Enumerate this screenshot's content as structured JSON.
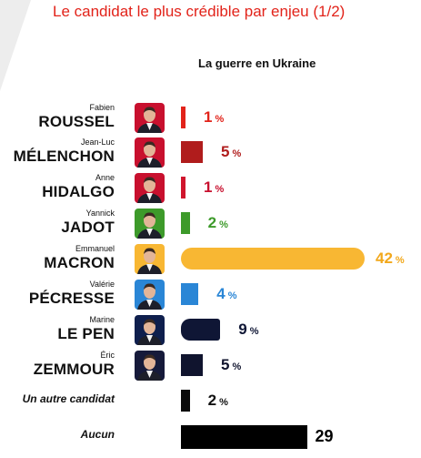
{
  "header": {
    "title": "Le candidat le plus crédible par enjeu (1/2)",
    "subtitle": "La guerre en Ukraine"
  },
  "chart_data": {
    "type": "bar",
    "orientation": "horizontal",
    "title": "Le candidat le plus crédible par enjeu (1/2)",
    "subtitle": "La guerre en Ukraine",
    "categories": [
      "Fabien ROUSSEL",
      "Jean-Luc MÉLENCHON",
      "Anne HIDALGO",
      "Yannick JADOT",
      "Emmanuel MACRON",
      "Valérie PÉCRESSE",
      "Marine LE PEN",
      "Éric ZEMMOUR",
      "Un autre candidat",
      "Aucun"
    ],
    "values": [
      1,
      5,
      1,
      2,
      42,
      4,
      9,
      5,
      2,
      29
    ],
    "value_labels": [
      "1",
      "5",
      "1",
      "2",
      "42",
      "4",
      "9",
      "5",
      "2",
      "29"
    ],
    "unit": "%",
    "xlim": [
      0,
      42
    ],
    "grid": false,
    "legend": "none",
    "rows": [
      {
        "first": "Fabien",
        "last": "ROUSSEL",
        "value": 1,
        "label": "1",
        "unit": "%",
        "color": "#e2231a",
        "label_color": "#e2231a",
        "photo_bg": "#c8102e",
        "photo": "portrait-roussel"
      },
      {
        "first": "Jean-Luc",
        "last": "MÉLENCHON",
        "value": 5,
        "label": "5",
        "unit": "%",
        "color": "#b01c1c",
        "label_color": "#b01c1c",
        "photo_bg": "#c8102e",
        "photo": "portrait-melenchon"
      },
      {
        "first": "Anne",
        "last": "HIDALGO",
        "value": 1,
        "label": "1",
        "unit": "%",
        "color": "#d0152d",
        "label_color": "#c8102e",
        "photo_bg": "#c8102e",
        "photo": "portrait-hidalgo"
      },
      {
        "first": "Yannick",
        "last": "JADOT",
        "value": 2,
        "label": "2",
        "unit": "%",
        "color": "#3d9a2a",
        "label_color": "#3d9a2a",
        "photo_bg": "#3d9a2a",
        "photo": "portrait-jadot"
      },
      {
        "first": "Emmanuel",
        "last": "MACRON",
        "value": 42,
        "label": "42",
        "unit": "%",
        "color": "#f8b733",
        "label_color": "#f2a81c",
        "photo_bg": "#f8b733",
        "photo": "portrait-macron"
      },
      {
        "first": "Valérie",
        "last": "PÉCRESSE",
        "value": 4,
        "label": "4",
        "unit": "%",
        "color": "#2a86d6",
        "label_color": "#2a86d6",
        "photo_bg": "#2a86d6",
        "photo": "portrait-pecresse"
      },
      {
        "first": "Marine",
        "last": "LE PEN",
        "value": 9,
        "label": "9",
        "unit": "%",
        "color": "#0f1635",
        "label_color": "#0f1635",
        "photo_bg": "#0f1f4d",
        "photo": "portrait-lepen"
      },
      {
        "first": "Éric",
        "last": "ZEMMOUR",
        "value": 5,
        "label": "5",
        "unit": "%",
        "color": "#10142e",
        "label_color": "#10142e",
        "photo_bg": "#161a3a",
        "photo": "portrait-zemmour"
      },
      {
        "first": "",
        "last": "Un autre candidat",
        "value": 2,
        "label": "2",
        "unit": "%",
        "color": "#0a0a0a",
        "label_color": "#111111",
        "photo": ""
      },
      {
        "first": "",
        "last": "Aucun",
        "value": 29,
        "label": "29",
        "unit": "",
        "color": "#000000",
        "label_color": "#000000",
        "photo": ""
      }
    ]
  },
  "colors": {
    "title": "#e2231a",
    "corner_shape": "#ededed"
  }
}
